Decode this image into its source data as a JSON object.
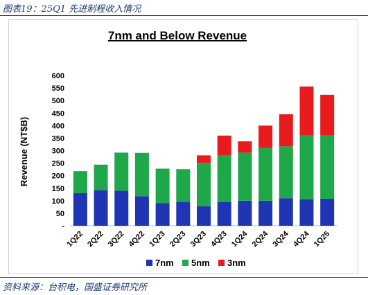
{
  "caption": "图表19：25Q1 先进制程收入情况",
  "source": "资料来源：台积电，国盛证券研究所",
  "colors": {
    "7nm": "#1f35b4",
    "5nm": "#1fa84a",
    "3nm": "#e81c1c"
  },
  "chart_data": {
    "type": "bar",
    "stacked": true,
    "title": "7nm and Below Revenue",
    "ylabel": "Revenue (NT$B)",
    "xlabel": "",
    "ylim": [
      0,
      600
    ],
    "yticks": [
      "-",
      "50",
      "100",
      "150",
      "200",
      "250",
      "300",
      "350",
      "400",
      "450",
      "500",
      "550",
      "600"
    ],
    "categories": [
      "1Q22",
      "2Q22",
      "3Q22",
      "4Q22",
      "1Q23",
      "2Q23",
      "3Q23",
      "4Q23",
      "1Q24",
      "2Q24",
      "3Q24",
      "4Q24",
      "1Q25"
    ],
    "series": [
      {
        "name": "7nm",
        "values": [
          130,
          142,
          140,
          118,
          90,
          96,
          78,
          95,
          100,
          100,
          110,
          105,
          108
        ]
      },
      {
        "name": "5nm",
        "values": [
          88,
          102,
          152,
          173,
          138,
          130,
          173,
          187,
          192,
          210,
          207,
          255,
          253
        ]
      },
      {
        "name": "3nm",
        "values": [
          0,
          0,
          0,
          0,
          0,
          0,
          30,
          78,
          45,
          90,
          128,
          196,
          162
        ]
      }
    ],
    "legend": "bottom",
    "grid": false
  }
}
